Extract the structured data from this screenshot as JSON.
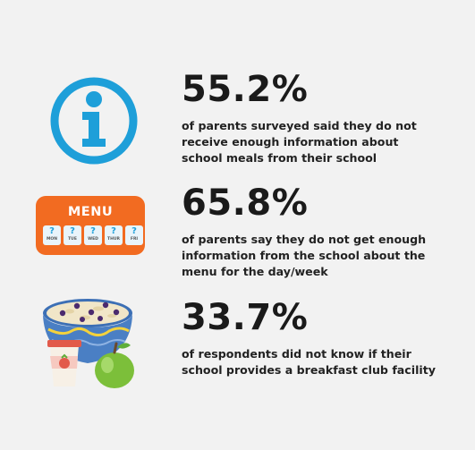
{
  "stats": [
    {
      "percentage": "55.2%",
      "lines": [
        "of parents surveyed said they do not",
        "receive enough information about",
        "school meals from their school"
      ],
      "icon": "info-icon"
    },
    {
      "percentage": "65.8%",
      "lines": [
        "of parents say they do not get enough",
        "information from the school about the",
        "menu for the day/week"
      ],
      "icon": "menu-card-icon",
      "menu": {
        "title": "MENU",
        "days": [
          {
            "mark": "?",
            "label": "MON"
          },
          {
            "mark": "?",
            "label": "TUE"
          },
          {
            "mark": "?",
            "label": "WED"
          },
          {
            "mark": "?",
            "label": "THUR"
          },
          {
            "mark": "?",
            "label": "FRI"
          }
        ]
      }
    },
    {
      "percentage": "33.7%",
      "lines": [
        "of respondents did not know if their",
        "school provides a breakfast club facility"
      ],
      "icon": "breakfast-food-icon"
    }
  ],
  "colors": {
    "background": "#f2f2f2",
    "info_blue": "#1e9fd9",
    "menu_orange": "#f26b21",
    "bowl_blue": "#4a7fc4",
    "apple_green": "#7cbf3a",
    "yogurt_red": "#e25a4a"
  }
}
